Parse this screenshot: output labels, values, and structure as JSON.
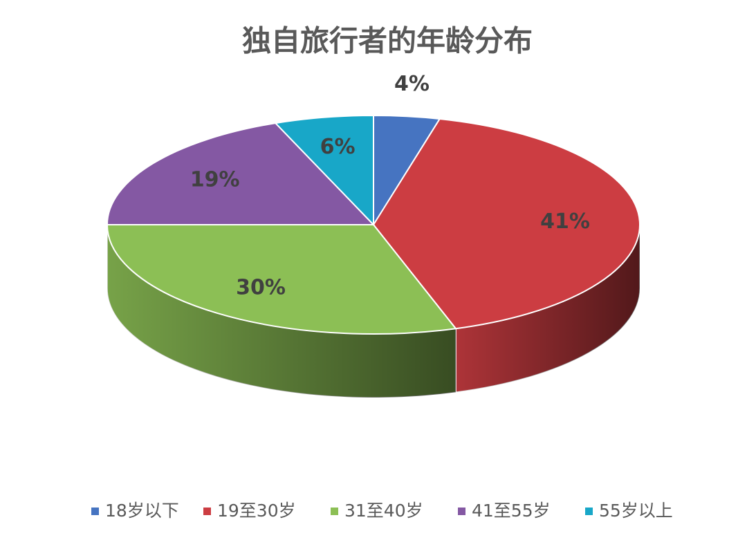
{
  "chart_data": {
    "type": "pie",
    "title": "独自旅行者的年龄分布",
    "categories": [
      "18岁以下",
      "19至30岁",
      "31至40岁",
      "41至55岁",
      "55岁以上"
    ],
    "values": [
      4,
      41,
      30,
      19,
      6
    ],
    "value_labels": [
      "4%",
      "41%",
      "30%",
      "19%",
      "6%"
    ],
    "colors": [
      "#4674c1",
      "#cc3d42",
      "#8cbf55",
      "#8458a3",
      "#18a7c8"
    ],
    "legend": "bottom"
  }
}
